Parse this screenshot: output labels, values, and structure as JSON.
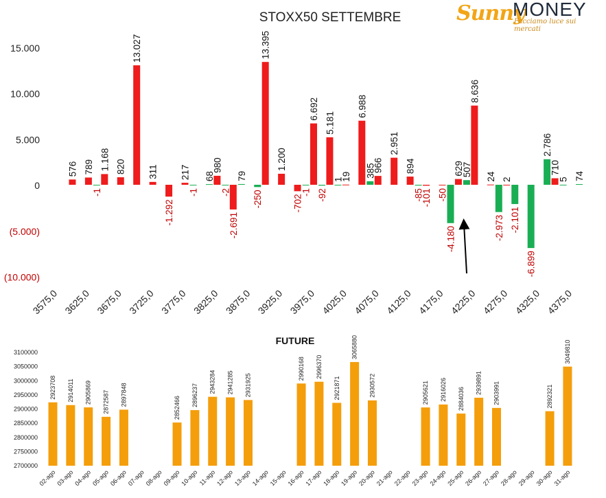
{
  "logo": {
    "brand_part1": "Sunny",
    "brand_part2": "MONEY",
    "tagline": "Facciamo luce sui mercati",
    "colors": {
      "sunny": "#f2a516",
      "money": "#1e2a3a"
    }
  },
  "chart_data": [
    {
      "type": "bar",
      "title": "STOXX50 SETTEMBRE",
      "y_tick_labels": [
        "15.000",
        "10.000",
        "5.000",
        "0",
        "(5.000)",
        "(10.000)"
      ],
      "y_tick_values": [
        15000,
        10000,
        5000,
        0,
        -5000,
        -10000
      ],
      "ylim": [
        -10000,
        15000
      ],
      "x_tick_labels": [
        "3575,0",
        "3625,0",
        "3675,0",
        "3725,0",
        "3775,0",
        "3825,0",
        "3875,0",
        "3925,0",
        "3975,0",
        "4025,0",
        "4075,0",
        "4125,0",
        "4175,0",
        "4225,0",
        "4275,0",
        "4325,0",
        "4375,0"
      ],
      "x_tick_values": [
        3575,
        3625,
        3675,
        3725,
        3775,
        3825,
        3875,
        3925,
        3975,
        4025,
        4075,
        4125,
        4175,
        4225,
        4275,
        4325,
        4375
      ],
      "xlim": [
        3575,
        4375
      ],
      "grid": false,
      "legend": "none",
      "series": [
        {
          "color": "#ee1c1c",
          "x": [
            3600,
            3625,
            3650,
            3675,
            3700,
            3725,
            3750,
            3775,
            3800,
            3825,
            3850,
            3875,
            3900,
            3925,
            3950,
            3975,
            4000,
            4025,
            4050,
            4075,
            4100,
            4125,
            4150,
            4175,
            4200,
            4225,
            4250,
            4275,
            4300,
            4325,
            4350,
            4375
          ],
          "values": [
            576,
            789,
            1168,
            820,
            13027,
            311,
            -1292,
            217,
            null,
            980,
            -2691,
            null,
            13395,
            1200,
            -702,
            6692,
            5181,
            19,
            6988,
            966,
            2951,
            894,
            -101,
            -50,
            629,
            8636,
            24,
            2,
            null,
            null,
            710,
            null
          ],
          "labels": [
            "576",
            "789",
            "1.168",
            "820",
            "13.027",
            "311",
            "-1.292",
            "217",
            "",
            "980",
            "-2.691",
            "",
            "13.395",
            "1.200",
            "-702",
            "6.692",
            "5.181",
            "19",
            "6.988",
            "966",
            "2.951",
            "894",
            "-101",
            "-50",
            "629",
            "8.636",
            "24",
            "2",
            "",
            "",
            "710",
            ""
          ]
        },
        {
          "color": "#1aae54",
          "x": [
            3600,
            3625,
            3650,
            3675,
            3700,
            3725,
            3750,
            3775,
            3800,
            3825,
            3850,
            3875,
            3900,
            3925,
            3950,
            3975,
            4000,
            4025,
            4050,
            4075,
            4100,
            4125,
            4150,
            4175,
            4200,
            4225,
            4250,
            4275,
            4300,
            4325,
            4350,
            4375
          ],
          "values": [
            null,
            -1,
            null,
            null,
            null,
            null,
            null,
            -1,
            68,
            -2,
            79,
            -250,
            null,
            null,
            -1,
            -92,
            1,
            null,
            385,
            null,
            null,
            -85,
            null,
            -4180,
            507,
            null,
            -2973,
            -2101,
            -6899,
            2786,
            5,
            74
          ],
          "labels": [
            "",
            "-1",
            "",
            "",
            "",
            "",
            "",
            "-1",
            "68",
            "-2",
            "79",
            "-250",
            "",
            "",
            "-1",
            "-92",
            "1",
            "",
            "385",
            "",
            "",
            "-85",
            "",
            "-4.180",
            "507",
            "",
            "-2.973",
            "-2.101",
            "-6.899",
            "2.786",
            "5",
            "74"
          ]
        }
      ]
    },
    {
      "type": "bar",
      "title": "FUTURE",
      "color": "#f49e0c",
      "y_tick_labels": [
        "3100000",
        "3050000",
        "3000000",
        "2950000",
        "2900000",
        "2850000",
        "2800000",
        "2750000",
        "2700000"
      ],
      "ylim": [
        2700000,
        3100000
      ],
      "categories": [
        "02-ago",
        "03-ago",
        "04-ago",
        "05-ago",
        "06-ago",
        "07-ago",
        "08-ago",
        "09-ago",
        "10-ago",
        "11-ago",
        "12-ago",
        "13-ago",
        "14-ago",
        "15-ago",
        "16-ago",
        "17-ago",
        "18-ago",
        "19-ago",
        "20-ago",
        "21-ago",
        "22-ago",
        "23-ago",
        "24-ago",
        "25-ago",
        "26-ago",
        "27-ago",
        "28-ago",
        "29-ago",
        "30-ago",
        "31-ago"
      ],
      "values": [
        2923708,
        2914011,
        2905869,
        2872587,
        2897848,
        null,
        null,
        2852466,
        2896237,
        2943284,
        2941285,
        2931925,
        null,
        null,
        2990168,
        2996370,
        2921871,
        3065880,
        2930572,
        null,
        null,
        2905621,
        2916026,
        2884036,
        2939891,
        2903991,
        null,
        null,
        2892321,
        3049810
      ],
      "grid": false,
      "legend": "none"
    }
  ]
}
